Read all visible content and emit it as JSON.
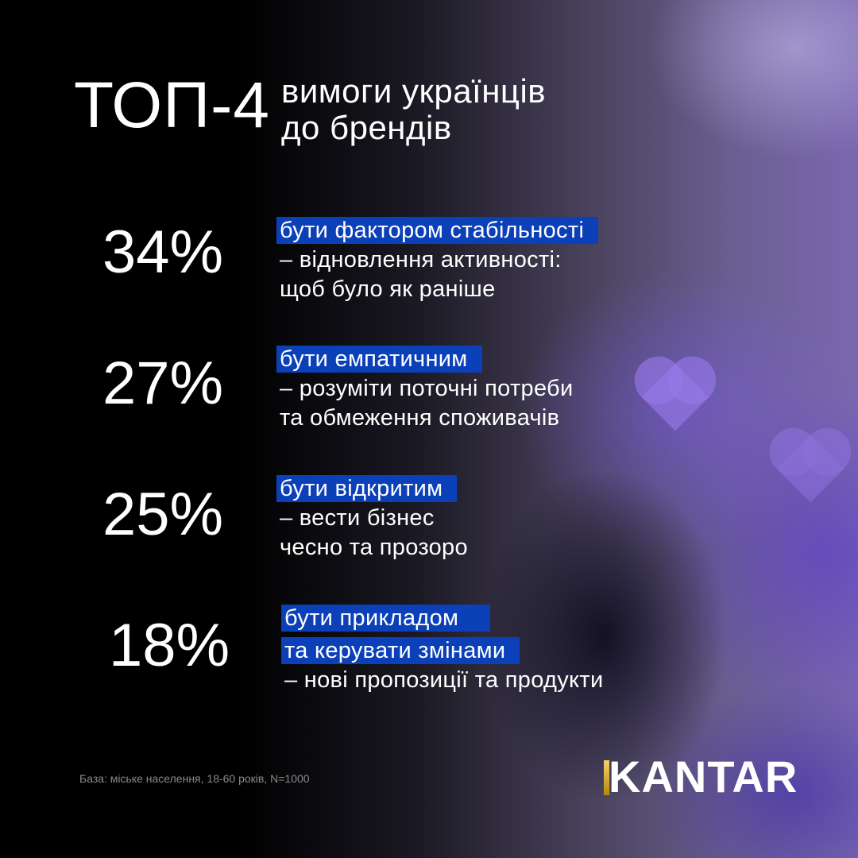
{
  "header": {
    "title": "ТОП-4",
    "subtitle_line1": "вимоги українців",
    "subtitle_line2": "до брендів"
  },
  "items": [
    {
      "percent": "34%",
      "highlight": [
        "бути фактором стабільності"
      ],
      "details": [
        "– відновлення активності:",
        "щоб було як раніше"
      ]
    },
    {
      "percent": "27%",
      "highlight": [
        "бути емпатичним"
      ],
      "details": [
        "– розуміти поточні потреби",
        "та обмеження споживачів"
      ]
    },
    {
      "percent": "25%",
      "highlight": [
        "бути відкритим"
      ],
      "details": [
        "– вести бізнес",
        "чесно та прозоро"
      ]
    },
    {
      "percent": "18%",
      "highlight": [
        "бути прикладом",
        "та керувати змінами"
      ],
      "details": [
        "– нові пропозиції та продукти"
      ]
    }
  ],
  "footer": {
    "note": "База: міське населення, 18-60 років, N=1000"
  },
  "logo": {
    "text": "KANTAR"
  },
  "colors": {
    "highlight": "#0b40b8",
    "background": "#000000",
    "accent_purple": "#7a68b0",
    "logo_gold": "#d4a730"
  }
}
